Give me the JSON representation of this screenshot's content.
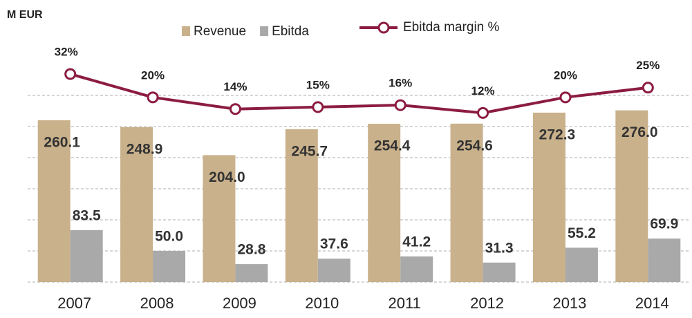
{
  "chart_data": {
    "type": "bar",
    "unit_label": "M EUR",
    "categories": [
      "2007",
      "2008",
      "2009",
      "2010",
      "2011",
      "2012",
      "2013",
      "2014"
    ],
    "series": [
      {
        "name": "Revenue",
        "color": "#c9b18b",
        "values": [
          260.1,
          248.9,
          204.0,
          245.7,
          254.4,
          254.6,
          272.3,
          276.0
        ],
        "value_labels": [
          "260.1",
          "248.9",
          "204.0",
          "245.7",
          "254.4",
          "254.6",
          "272.3",
          "276.0"
        ]
      },
      {
        "name": "Ebitda",
        "color": "#a9a9a9",
        "values": [
          83.5,
          50.0,
          28.8,
          37.6,
          41.2,
          31.3,
          55.2,
          69.9
        ],
        "value_labels": [
          "83.5",
          "50.0",
          "28.8",
          "37.6",
          "41.2",
          "31.3",
          "55.2",
          "69.9"
        ]
      },
      {
        "name": "Ebitda margin %",
        "type": "line",
        "axis": "y2",
        "color": "#8c1c40",
        "values": [
          32,
          20,
          14,
          15,
          16,
          12,
          20,
          25
        ],
        "value_labels": [
          "32%",
          "20%",
          "14%",
          "15%",
          "16%",
          "12%",
          "20%",
          "25%"
        ]
      }
    ],
    "ylim": [
      0,
      350
    ],
    "yticks": [
      0,
      50,
      100,
      150,
      200,
      250,
      300
    ],
    "y2lim": [
      -75,
      37
    ],
    "grid": true
  }
}
